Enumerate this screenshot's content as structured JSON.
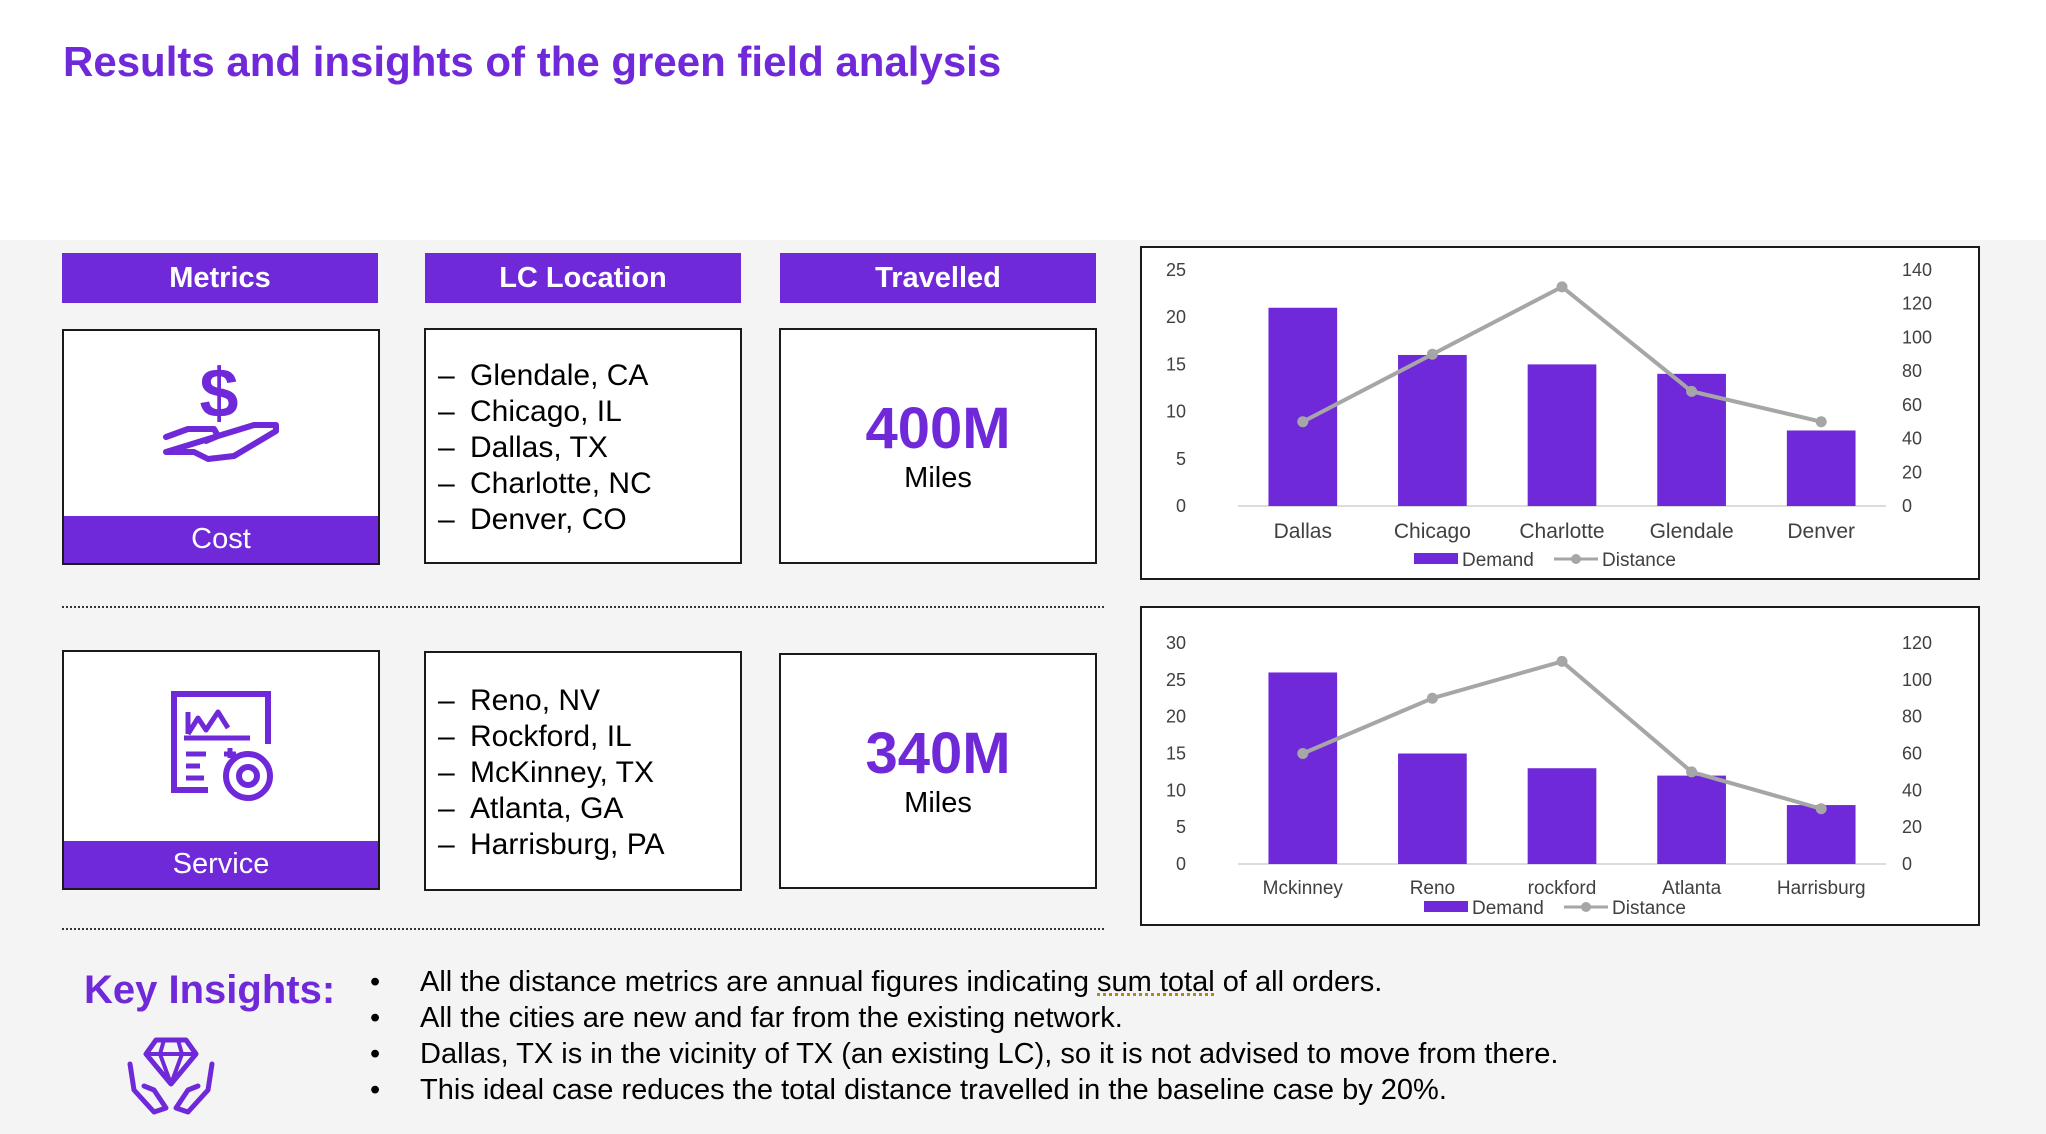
{
  "title": "Results and insights of the green field analysis",
  "headers": {
    "metrics": "Metrics",
    "location": "LC Location",
    "travelled": "Travelled"
  },
  "rows": [
    {
      "metric": "Cost",
      "icon": "dollar-hand-icon",
      "locations": [
        "Glendale, CA",
        "Chicago, IL",
        "Dallas, TX",
        "Charlotte, NC",
        "Denver, CO"
      ],
      "value": "400M",
      "unit": "Miles"
    },
    {
      "metric": "Service",
      "icon": "service-chart-gear-icon",
      "locations": [
        "Reno, NV",
        "Rockford, IL",
        "McKinney, TX",
        "Atlanta, GA",
        "Harrisburg, PA"
      ],
      "value": "340M",
      "unit": "Miles"
    }
  ],
  "insights": {
    "title": "Key Insights:",
    "icon": "diamond-hands-icon",
    "items": [
      {
        "before": "All the distance metrics are annual figures indicating ",
        "underlined": "sum total",
        "after": " of all orders."
      },
      {
        "before": "All the cities are new and far from the existing network.",
        "underlined": "",
        "after": ""
      },
      {
        "before": "Dallas, TX is in the vicinity of TX  (an existing LC), so it is not advised to move from there.",
        "underlined": "",
        "after": ""
      },
      {
        "before": "This ideal case reduces the total distance travelled in the baseline case by 20%.",
        "underlined": "",
        "after": ""
      }
    ]
  },
  "colors": {
    "accent": "#7029D9",
    "line": "#A6A6A6"
  },
  "chart_data": [
    {
      "type": "bar",
      "categories": [
        "Dallas",
        "Chicago",
        "Charlotte",
        "Glendale",
        "Denver"
      ],
      "series": [
        {
          "name": "Demand",
          "type": "bar",
          "axis": "left",
          "values": [
            21,
            16,
            15,
            14,
            8
          ]
        },
        {
          "name": "Distance",
          "type": "line",
          "axis": "right",
          "values": [
            50,
            90,
            130,
            68,
            50
          ]
        }
      ],
      "ylim": [
        0,
        25
      ],
      "yticks": [
        0,
        5,
        10,
        15,
        20,
        25
      ],
      "y2lim": [
        0,
        140
      ],
      "y2ticks": [
        0,
        20,
        40,
        60,
        80,
        100,
        120,
        140
      ],
      "legend": "bottom",
      "grid": false
    },
    {
      "type": "bar",
      "categories": [
        "Mckinney",
        "Reno",
        "rockford",
        "Atlanta",
        "Harrisburg"
      ],
      "series": [
        {
          "name": "Demand",
          "type": "bar",
          "axis": "left",
          "values": [
            26,
            15,
            13,
            12,
            8
          ]
        },
        {
          "name": "Distance",
          "type": "line",
          "axis": "right",
          "values": [
            60,
            90,
            110,
            50,
            30
          ]
        }
      ],
      "ylim": [
        0,
        30
      ],
      "yticks": [
        0,
        5,
        10,
        15,
        20,
        25,
        30
      ],
      "y2lim": [
        0,
        120
      ],
      "y2ticks": [
        0,
        20,
        40,
        60,
        80,
        100,
        120
      ],
      "legend": "bottom",
      "grid": false
    }
  ]
}
